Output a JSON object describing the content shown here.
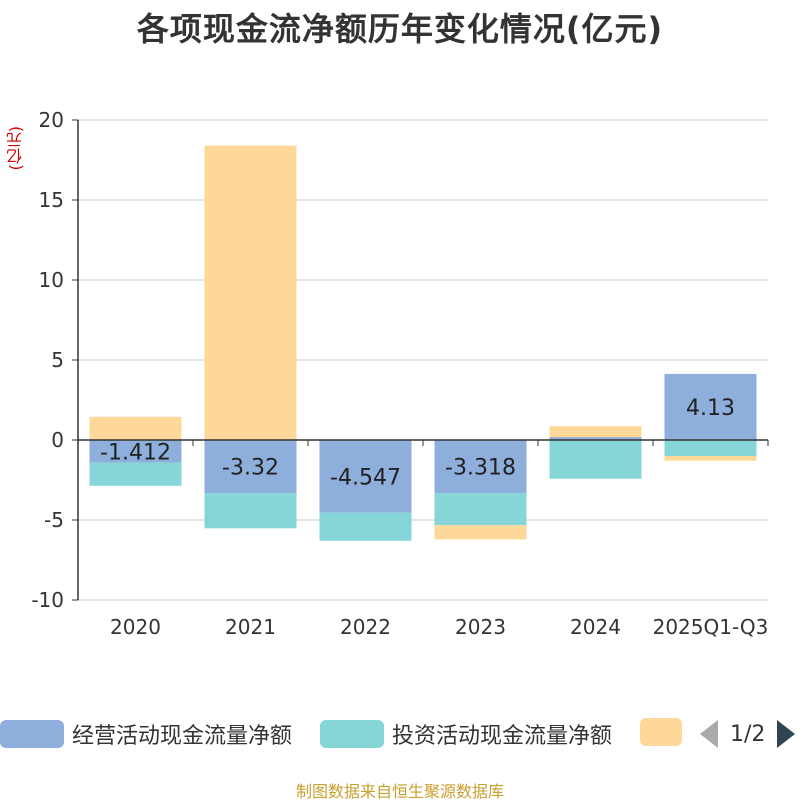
{
  "title": "各项现金流净额历年变化情况(亿元)",
  "unit_label": "(亿元)",
  "source": "制图数据来自恒生聚源数据库",
  "legend": {
    "items": [
      {
        "label": "经营活动现金流量净额",
        "color": "#8eaedc"
      },
      {
        "label": "投资活动现金流量净额",
        "color": "#86d6d8"
      },
      {
        "label": "",
        "color": "#fdd898"
      }
    ],
    "pager_text": "1/2"
  },
  "chart_data": {
    "type": "bar",
    "stacked": true,
    "title": "各项现金流净额历年变化情况(亿元)",
    "ylabel": "(亿元)",
    "ylim": [
      -10,
      20
    ],
    "yticks": [
      -10,
      -5,
      0,
      5,
      10,
      15,
      20
    ],
    "grid": true,
    "categories": [
      "2020",
      "2021",
      "2022",
      "2023",
      "2024",
      "2025Q1-Q3"
    ],
    "series": [
      {
        "name": "经营活动现金流量净额",
        "color": "#8eaedc",
        "values": [
          -1.412,
          -3.32,
          -4.547,
          -3.318,
          0.182,
          4.13
        ],
        "labels": [
          "-1.412",
          "-3.32",
          "-4.547",
          "-3.318",
          "",
          "4.13"
        ]
      },
      {
        "name": "投资活动现金流量净额",
        "color": "#86d6d8",
        "values": [
          -1.45,
          -2.2,
          -1.75,
          -2.0,
          -2.42,
          -1.0
        ],
        "labels": [
          "",
          "",
          "",
          "",
          "",
          ""
        ]
      },
      {
        "name": "",
        "color": "#fdd898",
        "values": [
          1.45,
          18.4,
          0,
          -0.9,
          0.68,
          -0.3
        ],
        "labels": [
          "",
          "",
          "",
          "",
          "",
          ""
        ]
      }
    ]
  }
}
